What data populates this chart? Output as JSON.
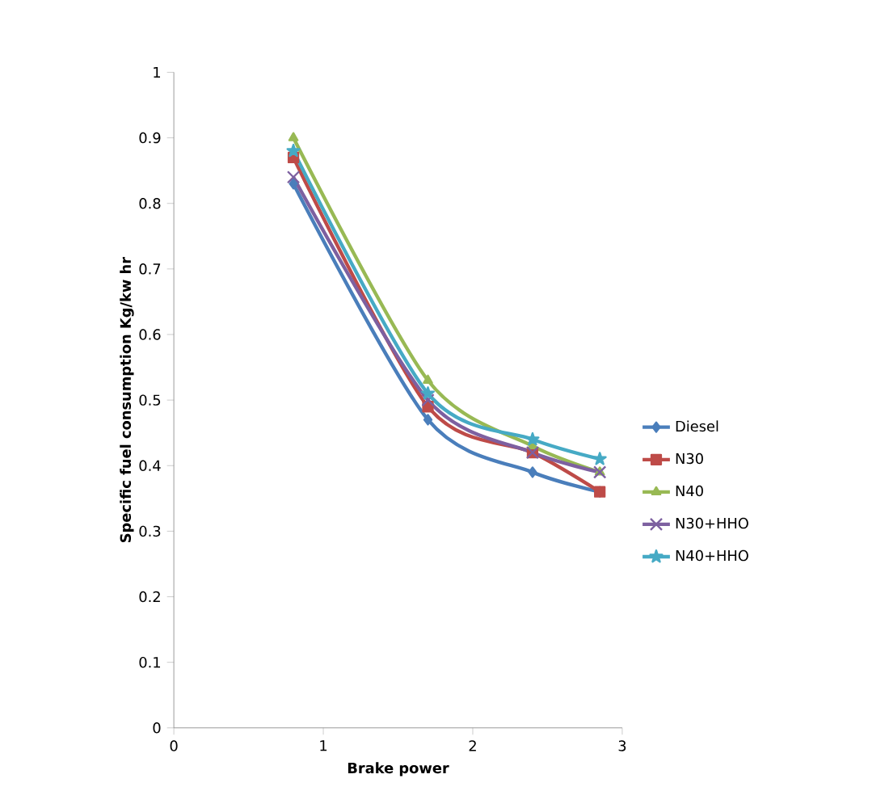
{
  "chart_data": {
    "type": "line",
    "xlabel": "Brake power",
    "ylabel": "Specific fuel consumption Kg/kw hr",
    "xlim": [
      0,
      3
    ],
    "xticks": [
      0,
      1,
      2,
      3
    ],
    "ylim": [
      0,
      1
    ],
    "yticks": [
      0,
      0.1,
      0.2,
      0.3,
      0.4,
      0.5,
      0.6,
      0.7,
      0.8,
      0.9,
      1
    ],
    "x": [
      0.8,
      1.7,
      2.4,
      2.85
    ],
    "grid": false,
    "legend": "right",
    "line_style": "solid",
    "series": [
      {
        "name": "Diesel",
        "color": "#4a7ebb",
        "marker": "diamond",
        "values": [
          0.83,
          0.47,
          0.39,
          0.36
        ]
      },
      {
        "name": "N30",
        "color": "#be4b48",
        "marker": "square",
        "values": [
          0.87,
          0.49,
          0.42,
          0.36
        ]
      },
      {
        "name": "N40",
        "color": "#98b954",
        "marker": "triangle",
        "values": [
          0.9,
          0.53,
          0.43,
          0.39
        ]
      },
      {
        "name": "N30+HHO",
        "color": "#7d60a0",
        "marker": "cross",
        "values": [
          0.84,
          0.5,
          0.42,
          0.39
        ]
      },
      {
        "name": "N40+HHO",
        "color": "#46aac5",
        "marker": "star",
        "values": [
          0.88,
          0.51,
          0.44,
          0.41
        ]
      }
    ]
  }
}
